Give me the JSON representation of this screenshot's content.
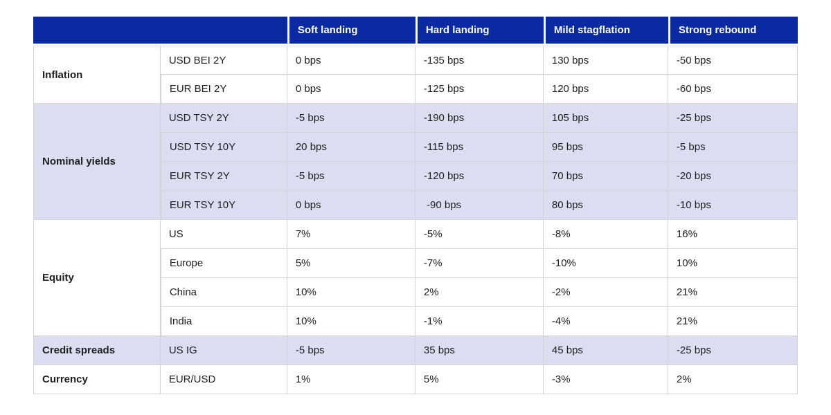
{
  "table": {
    "corner_label": "",
    "scenario_headers": [
      "Soft landing",
      "Hard landing",
      "Mild stagflation",
      "Strong rebound"
    ],
    "sections": [
      {
        "category": "Inflation",
        "shaded": false,
        "rows": [
          {
            "instrument": "USD BEI 2Y",
            "values": [
              "0 bps",
              "-135 bps",
              "130 bps",
              "-50 bps"
            ]
          },
          {
            "instrument": "EUR BEI 2Y",
            "values": [
              "0 bps",
              "-125 bps",
              "120 bps",
              "-60 bps"
            ]
          }
        ]
      },
      {
        "category": "Nominal yields",
        "shaded": true,
        "rows": [
          {
            "instrument": "USD TSY 2Y",
            "values": [
              "-5 bps",
              "-190 bps",
              "105 bps",
              "-25 bps"
            ]
          },
          {
            "instrument": "USD TSY 10Y",
            "values": [
              "20 bps",
              "-115 bps",
              "95 bps",
              "-5 bps"
            ]
          },
          {
            "instrument": "EUR TSY 2Y",
            "values": [
              "-5 bps",
              "-120 bps",
              "70 bps",
              "-20 bps"
            ]
          },
          {
            "instrument": "EUR TSY 10Y",
            "values": [
              "0 bps",
              " -90 bps",
              "80 bps",
              "-10 bps"
            ]
          }
        ]
      },
      {
        "category": "Equity",
        "shaded": false,
        "rows": [
          {
            "instrument": "US",
            "values": [
              "7%",
              "-5%",
              "-8%",
              "16%"
            ]
          },
          {
            "instrument": "Europe",
            "values": [
              "5%",
              "-7%",
              "-10%",
              "10%"
            ]
          },
          {
            "instrument": "China",
            "values": [
              "10%",
              "2%",
              "-2%",
              "21%"
            ]
          },
          {
            "instrument": "India",
            "values": [
              "10%",
              "-1%",
              "-4%",
              "21%"
            ]
          }
        ]
      },
      {
        "category": "Credit spreads",
        "shaded": true,
        "rows": [
          {
            "instrument": "US IG",
            "values": [
              "-5 bps",
              "35 bps",
              "45 bps",
              "-25 bps"
            ]
          }
        ]
      },
      {
        "category": "Currency",
        "shaded": false,
        "rows": [
          {
            "instrument": "EUR/USD",
            "values": [
              "1%",
              "5%",
              "-3%",
              "2%"
            ]
          }
        ]
      }
    ],
    "colors": {
      "header_bg": "#0a2aa3",
      "header_text": "#ffffff",
      "shaded_row_bg": "#dbddf1",
      "plain_row_bg": "#ffffff",
      "border": "#d4d4d4",
      "text": "#202020"
    }
  }
}
